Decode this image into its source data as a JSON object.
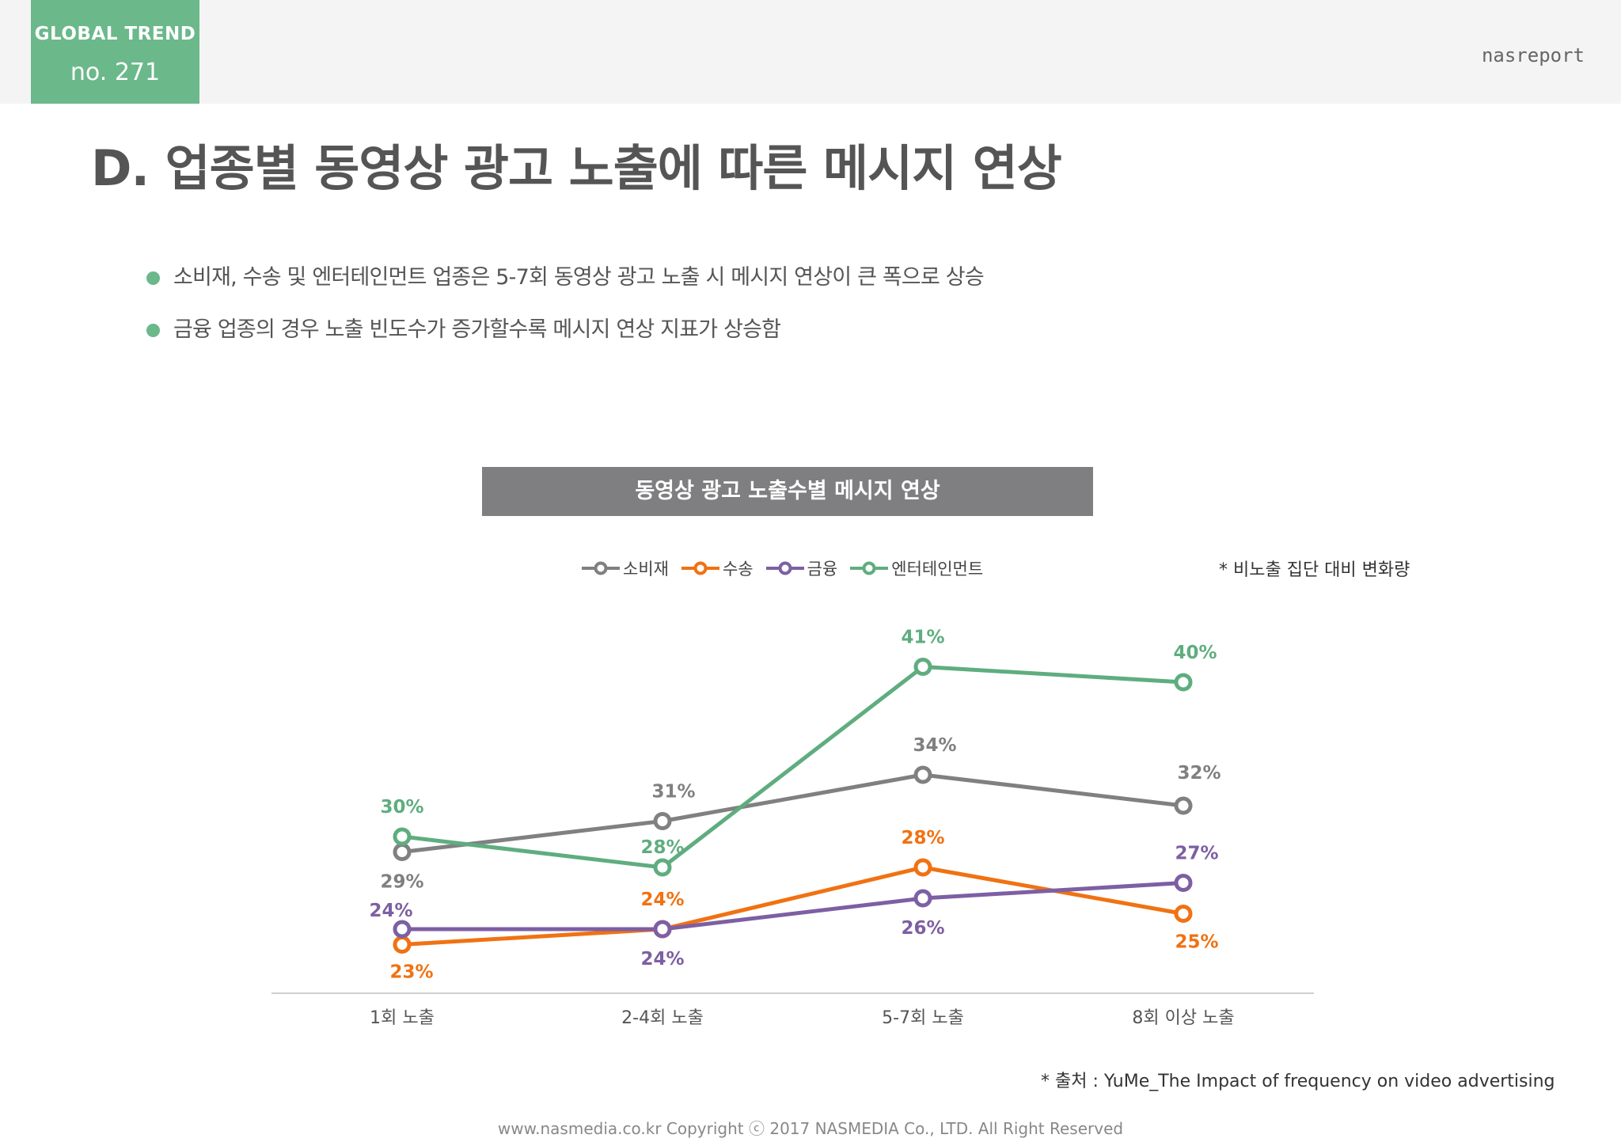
{
  "header": {
    "badge_line1": "GLOBAL TREND",
    "badge_line2": "no. 271",
    "brand": "nasreport"
  },
  "page_title": "D. 업종별 동영상 광고 노출에 따른 메시지 연상",
  "bullets": [
    "소비재, 수송 및 엔터테인먼트 업종은 5-7회 동영상 광고 노출 시 메시지 연상이 큰 폭으로 상승",
    "금융 업종의 경우 노출 빈도수가 증가할수록 메시지 연상 지표가 상승함"
  ],
  "chart_note": "* 비노출 집단 대비 변화량",
  "source": "* 출처 : YuMe_The Impact of frequency on video advertising",
  "copyright": "www.nasmedia.co.kr Copyright ⓒ 2017 NASMEDIA Co., LTD. All Right Reserved",
  "colors": {
    "accent": "#6bb88b",
    "title_bar": "#7f7e80"
  },
  "chart_data": {
    "type": "line",
    "title": "동영상 광고 노출수별 메시지 연상",
    "categories": [
      "1회 노출",
      "2-4회 노출",
      "5-7회 노출",
      "8회 이상 노출"
    ],
    "unit": "%",
    "legend_position": "top",
    "grid": false,
    "series": [
      {
        "name": "소비재",
        "color": "#808080",
        "values": [
          29,
          31,
          34,
          32
        ]
      },
      {
        "name": "수송",
        "color": "#f07212",
        "values": [
          23,
          24,
          28,
          25
        ]
      },
      {
        "name": "금융",
        "color": "#7d5fa3",
        "values": [
          24,
          24,
          26,
          27
        ]
      },
      {
        "name": "엔터테인먼트",
        "color": "#5fad7f",
        "values": [
          30,
          28,
          41,
          40
        ]
      }
    ]
  }
}
